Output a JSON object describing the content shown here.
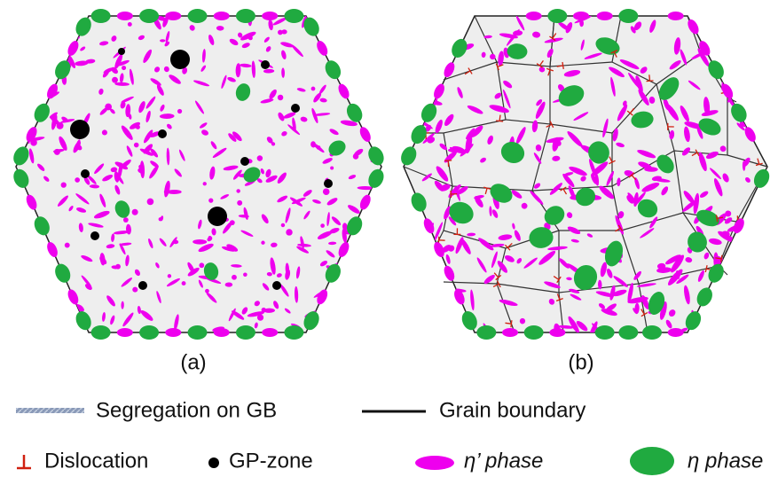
{
  "panels": [
    {
      "label": "(a)"
    },
    {
      "label": "(b)"
    }
  ],
  "legend": [
    {
      "label": "Segregation on GB"
    },
    {
      "label": "Grain boundary"
    },
    {
      "label": "Dislocation"
    },
    {
      "label": "GP-zone"
    },
    {
      "label": "η’ phase"
    },
    {
      "label": "η phase"
    }
  ]
}
